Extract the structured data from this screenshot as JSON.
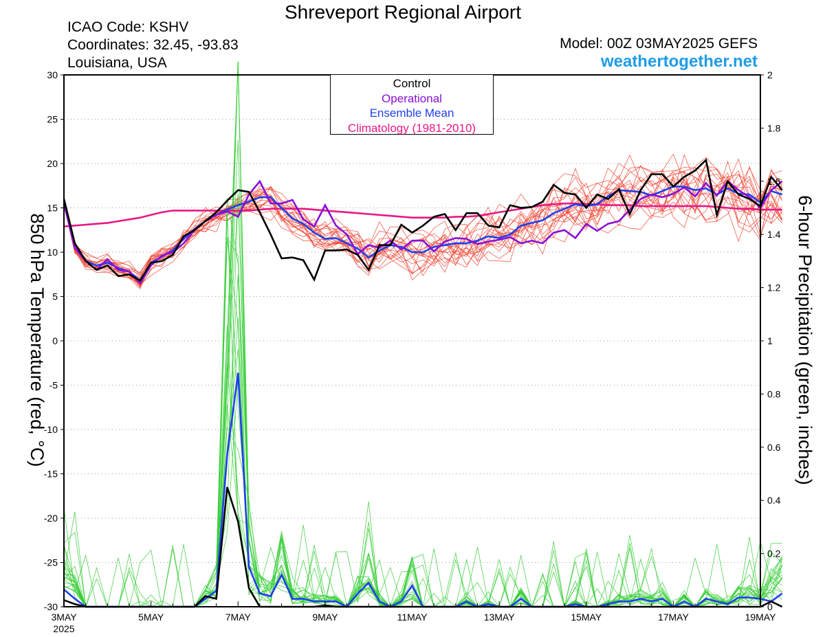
{
  "header": {
    "title": "Shreveport Regional Airport",
    "icao": "ICAO Code: KSHV",
    "coordinates": "Coordinates: 32.45, -93.83",
    "location": "Louisiana, USA",
    "model": "Model: 00Z 03MAY2025 GEFS",
    "brand": "weathertogether.net"
  },
  "legend": {
    "placement": "top-center",
    "items": [
      {
        "label": "Control",
        "color": "#000000"
      },
      {
        "label": "Operational",
        "color": "#8a0fd6"
      },
      {
        "label": "Ensemble Mean",
        "color": "#1f3ff0"
      },
      {
        "label": "Climatology (1981-2010)",
        "color": "#e81885"
      }
    ]
  },
  "chart_data": {
    "type": "line",
    "xlabel": "",
    "ylabel_left": "850 hPa Temperature (red, °C)",
    "ylabel_right": "6-hour Precipitation (green, inches)",
    "x_range_hours": [
      0,
      384
    ],
    "x_step_hours": 6,
    "x_ticks": [
      {
        "hour": 0,
        "label": "3MAY",
        "sublabel": "2025"
      },
      {
        "hour": 48,
        "label": "5MAY"
      },
      {
        "hour": 96,
        "label": "7MAY"
      },
      {
        "hour": 144,
        "label": "9MAY"
      },
      {
        "hour": 192,
        "label": "11MAY"
      },
      {
        "hour": 240,
        "label": "13MAY"
      },
      {
        "hour": 288,
        "label": "15MAY"
      },
      {
        "hour": 336,
        "label": "17MAY"
      },
      {
        "hour": 384,
        "label": "19MAY"
      }
    ],
    "ylim_left": [
      -30,
      30
    ],
    "yticks_left": [
      "-30",
      "-25",
      "-20",
      "-15",
      "-10",
      "-5",
      "0",
      "5",
      "10",
      "15",
      "20",
      "25",
      "30"
    ],
    "ylim_right": [
      0,
      2
    ],
    "yticks_right": [
      "0",
      "0.2",
      "0.4",
      "0.6",
      "0.8",
      "1",
      "1.2",
      "1.4",
      "1.6",
      "1.8",
      "2"
    ],
    "grid": true,
    "colors": {
      "members_temp": "#ee4433",
      "members_precip": "#33cc33",
      "control": "#000000",
      "operational": "#8a0fd6",
      "mean": "#1f3ff0",
      "climatology": "#e81885"
    },
    "climatology_temp": [
      12.9,
      13.0,
      13.1,
      13.2,
      13.3,
      13.5,
      13.7,
      13.9,
      14.2,
      14.5,
      14.7,
      14.7,
      14.7,
      14.7,
      14.7,
      14.7,
      14.7,
      14.7,
      14.8,
      14.9,
      14.9,
      14.9,
      14.9,
      14.8,
      14.7,
      14.6,
      14.5,
      14.4,
      14.3,
      14.2,
      14.1,
      14.0,
      13.9,
      13.9,
      13.9,
      13.9,
      14.0,
      14.0,
      14.1,
      14.3,
      14.5,
      14.7,
      14.9,
      15.1,
      15.3,
      15.4,
      15.5,
      15.5,
      15.4,
      15.4,
      15.3,
      15.3,
      15.3,
      15.2,
      15.2,
      15.2,
      15.2,
      15.2,
      15.2,
      15.2,
      15.1,
      15.0,
      14.9,
      14.9,
      14.8,
      14.8,
      14.8
    ],
    "control_temp": [
      16.0,
      11.0,
      9.0,
      8.0,
      8.5,
      7.3,
      7.5,
      6.8,
      8.8,
      9.0,
      9.7,
      11.8,
      12.5,
      13.5,
      14.5,
      15.8,
      17.0,
      16.8,
      14.5,
      12.0,
      9.3,
      9.4,
      9.1,
      6.9,
      10.2,
      10.2,
      10.3,
      9.7,
      8.0,
      10.8,
      10.8,
      13.1,
      12.2,
      13.0,
      14.0,
      14.3,
      12.5,
      14.4,
      14.4,
      13.0,
      12.8,
      15.3,
      15.0,
      15.1,
      15.7,
      17.6,
      16.7,
      16.5,
      15.0,
      16.5,
      16.0,
      17.1,
      14.3,
      17.0,
      18.8,
      18.8,
      17.4,
      18.5,
      19.2,
      20.4,
      14.2,
      18.0,
      16.5,
      16.0,
      15.2,
      18.5,
      17.0
    ],
    "operational_temp": [
      15.5,
      10.5,
      9.0,
      8.0,
      9.2,
      8.0,
      7.8,
      6.5,
      8.5,
      9.6,
      10.0,
      11.0,
      12.5,
      13.5,
      14.2,
      14.6,
      14.0,
      16.5,
      18.0,
      15.5,
      15.5,
      15.9,
      13.7,
      12.9,
      15.3,
      13.0,
      12.0,
      9.8,
      10.8,
      10.5,
      11.3,
      10.3,
      11.3,
      11.3,
      10.1,
      11.2,
      11.6,
      11.5,
      10.9,
      11.2,
      11.4,
      11.7,
      11.0,
      11.3,
      11.0,
      12.2,
      12.5,
      11.6,
      13.2,
      12.4,
      13.2,
      13.5,
      14.8,
      16.0,
      16.5,
      16.2,
      16.6,
      17.3,
      16.3,
      17.8,
      16.4,
      18.0,
      17.0,
      16.2,
      15.0,
      17.0,
      18.0
    ],
    "mean_temp": [
      15.8,
      10.5,
      9.0,
      8.5,
      8.8,
      8.2,
      7.8,
      6.8,
      8.8,
      9.5,
      10.2,
      11.5,
      12.6,
      13.5,
      14.2,
      14.8,
      15.3,
      15.7,
      16.2,
      16.2,
      15.0,
      13.8,
      13.2,
      12.2,
      11.5,
      11.6,
      11.0,
      10.4,
      9.4,
      10.2,
      10.8,
      10.6,
      10.0,
      10.0,
      10.6,
      10.8,
      11.0,
      11.0,
      11.3,
      11.8,
      11.6,
      12.0,
      13.0,
      13.3,
      13.6,
      14.4,
      14.9,
      15.4,
      15.2,
      15.4,
      16.3,
      17.0,
      16.9,
      16.8,
      16.4,
      16.9,
      17.4,
      17.4,
      17.0,
      17.2,
      16.5,
      17.2,
      16.6,
      16.5,
      15.6,
      16.9,
      16.5
    ],
    "control_precip": [
      0.025,
      0.01,
      0.0,
      0.0,
      0.0,
      0.0,
      0.0,
      0.0,
      0.0,
      0.0,
      0.0,
      0.0,
      0.0,
      0.04,
      0.03,
      0.45,
      0.32,
      0.07,
      0.0,
      0.0,
      0.0,
      0.0,
      0.0,
      0.0,
      0.005,
      0.0,
      0.0,
      0.0,
      0.0,
      0.0,
      0.0,
      0.0,
      0.0,
      0.0,
      0.0,
      0.0,
      0.0,
      0.0,
      0.0,
      0.0,
      0.0,
      0.0,
      0.0,
      0.0,
      0.0,
      0.0,
      0.0,
      0.0,
      0.0,
      0.0,
      0.0,
      0.0,
      0.0,
      0.0,
      0.0,
      0.0,
      0.0,
      0.0,
      0.0,
      0.0,
      0.0,
      0.0,
      0.0,
      0.0,
      0.0,
      0.02,
      0.0
    ],
    "mean_precip": [
      0.065,
      0.03,
      0.0,
      0.0,
      0.0,
      0.0,
      0.0,
      0.0,
      0.0,
      0.0,
      0.0,
      0.0,
      0.0,
      0.03,
      0.06,
      0.57,
      0.88,
      0.15,
      0.05,
      0.04,
      0.12,
      0.03,
      0.03,
      0.02,
      0.02,
      0.02,
      0.0,
      0.05,
      0.09,
      0.02,
      0.0,
      0.02,
      0.08,
      0.0,
      0.0,
      0.0,
      0.0,
      0.02,
      0.0,
      0.01,
      0.0,
      0.0,
      0.03,
      0.0,
      0.0,
      0.0,
      0.0,
      0.01,
      0.0,
      0.0,
      0.01,
      0.02,
      0.02,
      0.03,
      0.02,
      0.03,
      0.0,
      0.02,
      0.0,
      0.03,
      0.02,
      0.01,
      0.035,
      0.035,
      0.03,
      0.02,
      0.05
    ]
  }
}
